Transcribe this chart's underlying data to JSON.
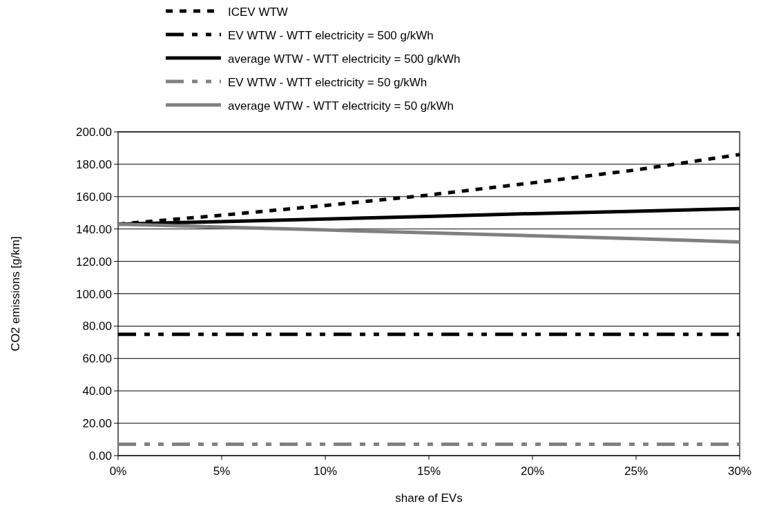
{
  "chart_data": {
    "type": "line",
    "xlabel": "share of EVs",
    "ylabel": "CO2 emissions [g/km]",
    "x": [
      0,
      0.05,
      0.1,
      0.15,
      0.2,
      0.25,
      0.3
    ],
    "xlim": [
      0,
      0.3
    ],
    "xticks": [
      {
        "value": 0,
        "label": "0%"
      },
      {
        "value": 0.05,
        "label": "5%"
      },
      {
        "value": 0.1,
        "label": "10%"
      },
      {
        "value": 0.15,
        "label": "15%"
      },
      {
        "value": 0.2,
        "label": "20%"
      },
      {
        "value": 0.25,
        "label": "25%"
      },
      {
        "value": 0.3,
        "label": "30%"
      }
    ],
    "ylim": [
      0,
      200
    ],
    "yticks": [
      {
        "value": 0,
        "label": "0.00"
      },
      {
        "value": 20,
        "label": "20.00"
      },
      {
        "value": 40,
        "label": "40.00"
      },
      {
        "value": 60,
        "label": "60.00"
      },
      {
        "value": 80,
        "label": "80.00"
      },
      {
        "value": 100,
        "label": "100.00"
      },
      {
        "value": 120,
        "label": "120.00"
      },
      {
        "value": 140,
        "label": "140.00"
      },
      {
        "value": 160,
        "label": "160.00"
      },
      {
        "value": 180,
        "label": "180.00"
      },
      {
        "value": 200,
        "label": "200.00"
      }
    ],
    "grid": "y",
    "legend": "top",
    "marker": "none",
    "series": [
      {
        "name": "ICEV WTW",
        "color": "#000000",
        "line_style": "dotted",
        "values": [
          143,
          148.5,
          154.5,
          161,
          168.5,
          176.5,
          186
        ]
      },
      {
        "name": "EV WTW - WTT electricity = 500 g/kWh",
        "color": "#000000",
        "line_style": "dashed",
        "values": [
          75,
          75,
          75,
          75,
          75,
          75,
          75
        ]
      },
      {
        "name": "average WTW - WTT electricity = 500 g/kWh",
        "color": "#000000",
        "line_style": "solid",
        "values": [
          143,
          144.6,
          146.2,
          147.8,
          149.5,
          151,
          152.6
        ]
      },
      {
        "name": "EV WTW - WTT electricity = 50 g/kWh",
        "color": "#808080",
        "line_style": "dashed",
        "values": [
          7,
          7,
          7,
          7,
          7,
          7,
          7
        ]
      },
      {
        "name": "average WTW - WTT electricity = 50 g/kWh",
        "color": "#808080",
        "line_style": "solid",
        "values": [
          143,
          141.2,
          139.4,
          137.6,
          135.8,
          134,
          132
        ]
      }
    ]
  }
}
